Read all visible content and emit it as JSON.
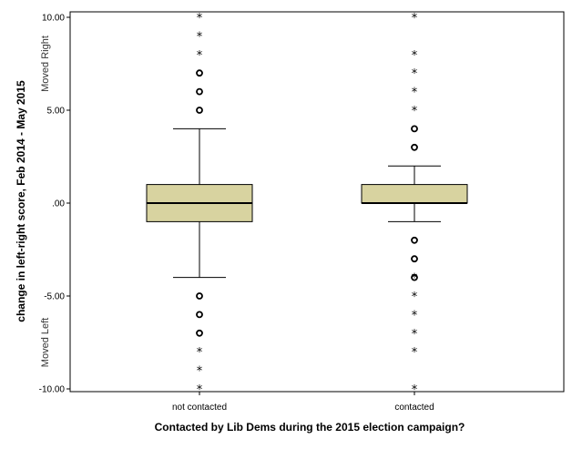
{
  "chart_data": {
    "type": "boxplot",
    "xlabel": "Contacted by Lib Dems  during the 2015 election campaign?",
    "ylabel": "change in left-right score, Feb 2014 - May 2015",
    "ylim": [
      -10,
      10
    ],
    "yticks": [
      {
        "value": 10,
        "label": "10.00"
      },
      {
        "value": 5,
        "label": "5.00"
      },
      {
        "value": 0,
        "label": ".00"
      },
      {
        "value": -5,
        "label": "-5.00"
      },
      {
        "value": -10,
        "label": "-10.00"
      }
    ],
    "annotations": [
      {
        "text": "Moved Right",
        "value": 7.5
      },
      {
        "text": "Moved Left",
        "value": -7.5
      }
    ],
    "box_color": "#d8d3a0",
    "grid": false,
    "categories": [
      "not contacted",
      "contacted"
    ],
    "boxes": [
      {
        "category": "not contacted",
        "whisker_low": -4,
        "q1": -1,
        "median": 0,
        "q3": 1,
        "whisker_high": 4,
        "outliers_circle": [
          5,
          6,
          7,
          -5,
          -6,
          -7
        ],
        "outliers_extreme": [
          10,
          9,
          8,
          -8,
          -9,
          -10
        ]
      },
      {
        "category": "contacted",
        "whisker_low": -1,
        "q1": 0,
        "median": 0,
        "q3": 1,
        "whisker_high": 2,
        "outliers_circle": [
          3,
          4,
          -2,
          -3,
          -4
        ],
        "outliers_extreme": [
          5,
          6,
          7,
          8,
          10,
          -4,
          -5,
          -6,
          -7,
          -8,
          -10
        ]
      }
    ]
  }
}
